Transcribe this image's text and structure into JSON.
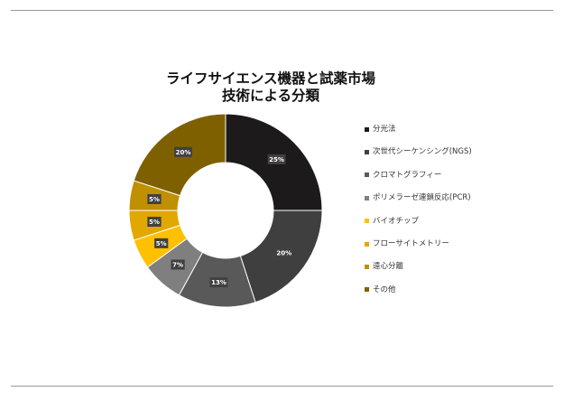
{
  "chart_data": {
    "type": "pie",
    "title_lines": [
      "ライフサイエンス機器と試薬市場",
      "技術による分類"
    ],
    "categories": [
      "分光法",
      "次世代シーケンシング(NGS)",
      "クロマトグラフィー",
      "ポリメラーゼ連鎖反応(PCR)",
      "バイオチップ",
      "フローサイトメトリー",
      "遠心分離",
      "その他"
    ],
    "values": [
      25,
      20,
      13,
      7,
      5,
      5,
      5,
      20
    ],
    "data_labels": [
      "25%",
      "20%",
      "13%",
      "7%",
      "5%",
      "5%",
      "5%",
      "20%"
    ],
    "colors": [
      "#1c1a1a",
      "#3f3f3f",
      "#595959",
      "#7f7f7f",
      "#ffc000",
      "#e0a800",
      "#bf9000",
      "#7f6000"
    ],
    "legend_position": "right",
    "donut": true
  }
}
